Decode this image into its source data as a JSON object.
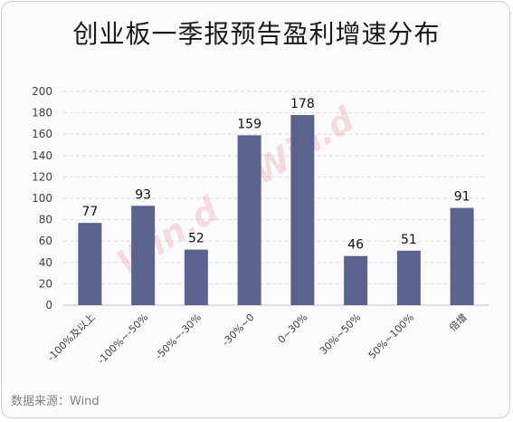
{
  "header": {
    "title": "创业板一季报预告盈利增速分布"
  },
  "footer": {
    "source": "数据来源：Wind"
  },
  "watermark": {
    "text": "Win.d"
  },
  "colors": {
    "bar": "#5a638e",
    "grid": "#dcdcdc",
    "axis": "#bfbfbf",
    "watermark": "#e8a0a0"
  },
  "chart_data": {
    "type": "bar",
    "title": "创业板一季报预告盈利增速分布",
    "xlabel": "",
    "ylabel": "",
    "categories": [
      "-100%及以上",
      "-100%~-50%",
      "-50%~-30%",
      "-30%~0",
      "0~30%",
      "30%~50%",
      "50%~100%",
      "倍增"
    ],
    "values": [
      77,
      93,
      52,
      159,
      178,
      46,
      51,
      91
    ],
    "ylim": [
      0,
      200
    ],
    "yticks": [
      0,
      20,
      40,
      60,
      80,
      100,
      120,
      140,
      160,
      180,
      200
    ],
    "grid": true,
    "legend": "none",
    "data_labels": true
  }
}
